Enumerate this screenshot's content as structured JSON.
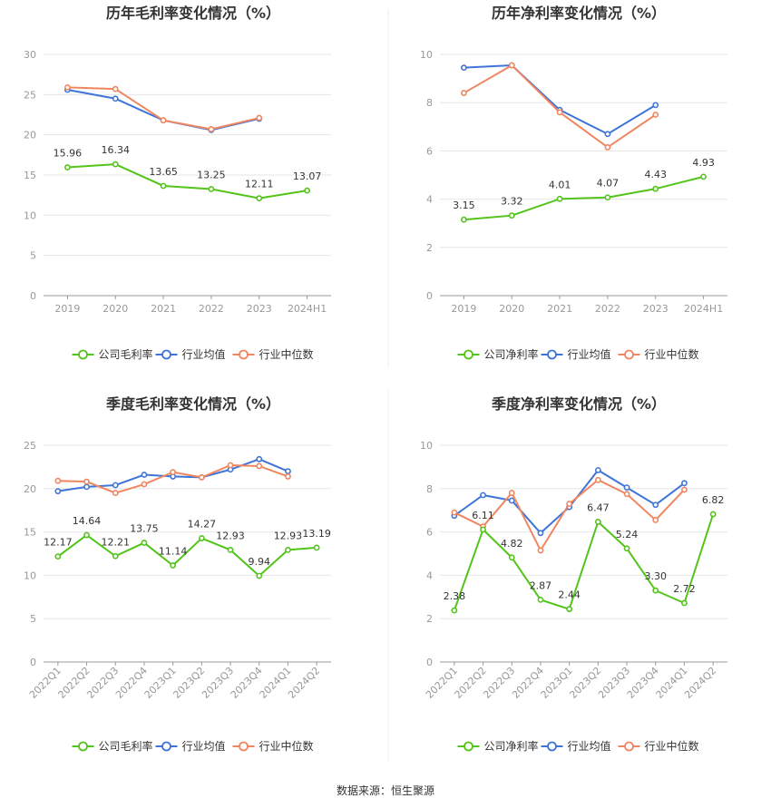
{
  "colors": {
    "company": "#52c41a",
    "industry_avg": "#3f74d8",
    "industry_median": "#f0865f"
  },
  "legend": {
    "company_gross": "公司毛利率",
    "company_net": "公司净利率",
    "industry_avg": "行业均值",
    "industry_median": "行业中位数"
  },
  "source": "数据来源：恒生聚源",
  "chart_data": [
    {
      "type": "line",
      "title": "历年毛利率变化情况（%）",
      "x": [
        "2019",
        "2020",
        "2021",
        "2022",
        "2023",
        "2024H1"
      ],
      "ylim": [
        0,
        30
      ],
      "yticks": [
        0,
        5,
        10,
        15,
        20,
        25,
        30
      ],
      "series": [
        {
          "name": "公司毛利率",
          "key": "company",
          "values": [
            15.96,
            16.34,
            13.65,
            13.25,
            12.11,
            13.07
          ],
          "labels": true
        },
        {
          "name": "行业均值",
          "key": "industry_avg",
          "values": [
            25.6,
            24.5,
            21.8,
            20.6,
            22.0,
            null
          ]
        },
        {
          "name": "行业中位数",
          "key": "industry_median",
          "values": [
            25.9,
            25.7,
            21.8,
            20.7,
            22.1,
            null
          ]
        }
      ],
      "legend_position": "bottom"
    },
    {
      "type": "line",
      "title": "历年净利率变化情况（%）",
      "x": [
        "2019",
        "2020",
        "2021",
        "2022",
        "2023",
        "2024H1"
      ],
      "ylim": [
        0,
        10
      ],
      "yticks": [
        0,
        2,
        4,
        6,
        8,
        10
      ],
      "series": [
        {
          "name": "公司净利率",
          "key": "company",
          "values": [
            3.15,
            3.32,
            4.01,
            4.07,
            4.43,
            4.93
          ],
          "labels": true
        },
        {
          "name": "行业均值",
          "key": "industry_avg",
          "values": [
            9.45,
            9.55,
            7.7,
            6.7,
            7.9,
            null
          ]
        },
        {
          "name": "行业中位数",
          "key": "industry_median",
          "values": [
            8.4,
            9.55,
            7.6,
            6.15,
            7.5,
            null
          ]
        }
      ],
      "legend_position": "bottom"
    },
    {
      "type": "line",
      "title": "季度毛利率变化情况（%）",
      "x": [
        "2022Q1",
        "2022Q2",
        "2022Q3",
        "2022Q4",
        "2023Q1",
        "2023Q2",
        "2023Q3",
        "2023Q4",
        "2024Q1",
        "2024Q2"
      ],
      "ylim": [
        0,
        25
      ],
      "yticks": [
        0,
        5,
        10,
        15,
        20,
        25
      ],
      "series": [
        {
          "name": "公司毛利率",
          "key": "company",
          "values": [
            12.17,
            14.64,
            12.21,
            13.75,
            11.14,
            14.27,
            12.93,
            9.94,
            12.93,
            13.19
          ],
          "labels": true
        },
        {
          "name": "行业均值",
          "key": "industry_avg",
          "values": [
            19.7,
            20.2,
            20.4,
            21.6,
            21.4,
            21.3,
            22.2,
            23.4,
            22.0,
            null
          ]
        },
        {
          "name": "行业中位数",
          "key": "industry_median",
          "values": [
            20.9,
            20.8,
            19.5,
            20.5,
            21.9,
            21.3,
            22.7,
            22.6,
            21.4,
            null
          ]
        }
      ],
      "legend_position": "bottom"
    },
    {
      "type": "line",
      "title": "季度净利率变化情况（%）",
      "x": [
        "2022Q1",
        "2022Q2",
        "2022Q3",
        "2022Q4",
        "2023Q1",
        "2023Q2",
        "2023Q3",
        "2023Q4",
        "2024Q1",
        "2024Q2"
      ],
      "ylim": [
        0,
        10
      ],
      "yticks": [
        0,
        2,
        4,
        6,
        8,
        10
      ],
      "series": [
        {
          "name": "公司净利率",
          "key": "company",
          "values": [
            2.38,
            6.11,
            4.82,
            2.87,
            2.44,
            6.47,
            5.24,
            3.3,
            2.72,
            6.82
          ],
          "labels": true
        },
        {
          "name": "行业均值",
          "key": "industry_avg",
          "values": [
            6.75,
            7.7,
            7.45,
            5.95,
            7.15,
            8.85,
            8.05,
            7.25,
            8.25,
            null
          ]
        },
        {
          "name": "行业中位数",
          "key": "industry_median",
          "values": [
            6.9,
            6.25,
            7.8,
            5.15,
            7.3,
            8.4,
            7.75,
            6.55,
            7.95,
            null
          ]
        }
      ],
      "legend_position": "bottom"
    }
  ]
}
